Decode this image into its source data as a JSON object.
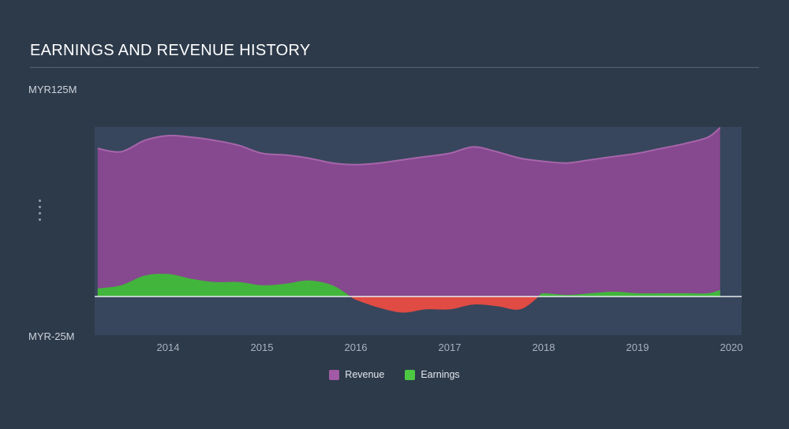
{
  "title": "EARNINGS AND REVENUE HISTORY",
  "y_axis": {
    "top_label": "MYR125M",
    "bottom_label": "MYR-25M"
  },
  "x_axis": {
    "ticks": [
      "2014",
      "2015",
      "2016",
      "2017",
      "2018",
      "2019",
      "2020"
    ]
  },
  "legend": {
    "items": [
      {
        "label": "Revenue",
        "color": "#a259a6"
      },
      {
        "label": "Earnings",
        "color": "#4cc843"
      }
    ]
  },
  "colors": {
    "background": "#2d3a4a",
    "plot_band": "#37465c",
    "revenue_fill": "#86488e",
    "revenue_line": "#a765ab",
    "earnings_positive": "#42b53c",
    "earnings_negative": "#e04b44",
    "zero_line": "#e8ebee",
    "title_rule": "#56626e",
    "axis_text": "#a9b2bd",
    "label_text": "#ccd3da"
  },
  "chart_data": {
    "type": "area",
    "title": "EARNINGS AND REVENUE HISTORY",
    "currency": "MYR",
    "unit": "M",
    "ylim": [
      -25,
      125
    ],
    "xlim": [
      2013.22,
      2020.11
    ],
    "grid": false,
    "legend_position": "bottom",
    "x": [
      2013.25,
      2013.5,
      2013.75,
      2014,
      2014.25,
      2014.5,
      2014.75,
      2015,
      2015.25,
      2015.5,
      2015.75,
      2016,
      2016.25,
      2016.5,
      2016.75,
      2017,
      2017.25,
      2017.5,
      2017.75,
      2018,
      2018.25,
      2018.5,
      2018.75,
      2019,
      2019.25,
      2019.5,
      2019.75,
      2019.88
    ],
    "series": [
      {
        "name": "Revenue",
        "values": [
          92,
          90,
          97,
          100,
          99,
          97,
          94,
          89,
          88,
          86,
          83,
          82,
          83,
          85,
          87,
          89,
          93,
          90,
          86,
          84,
          83,
          85,
          87,
          89,
          92,
          95,
          99,
          105
        ]
      },
      {
        "name": "Earnings",
        "values": [
          5,
          7,
          13,
          14,
          11,
          9,
          9,
          7,
          8,
          10,
          7,
          -2,
          -7,
          -10,
          -8,
          -8,
          -5,
          -6,
          -8,
          2,
          1,
          2,
          3,
          2,
          2,
          2,
          2,
          4
        ]
      }
    ]
  }
}
